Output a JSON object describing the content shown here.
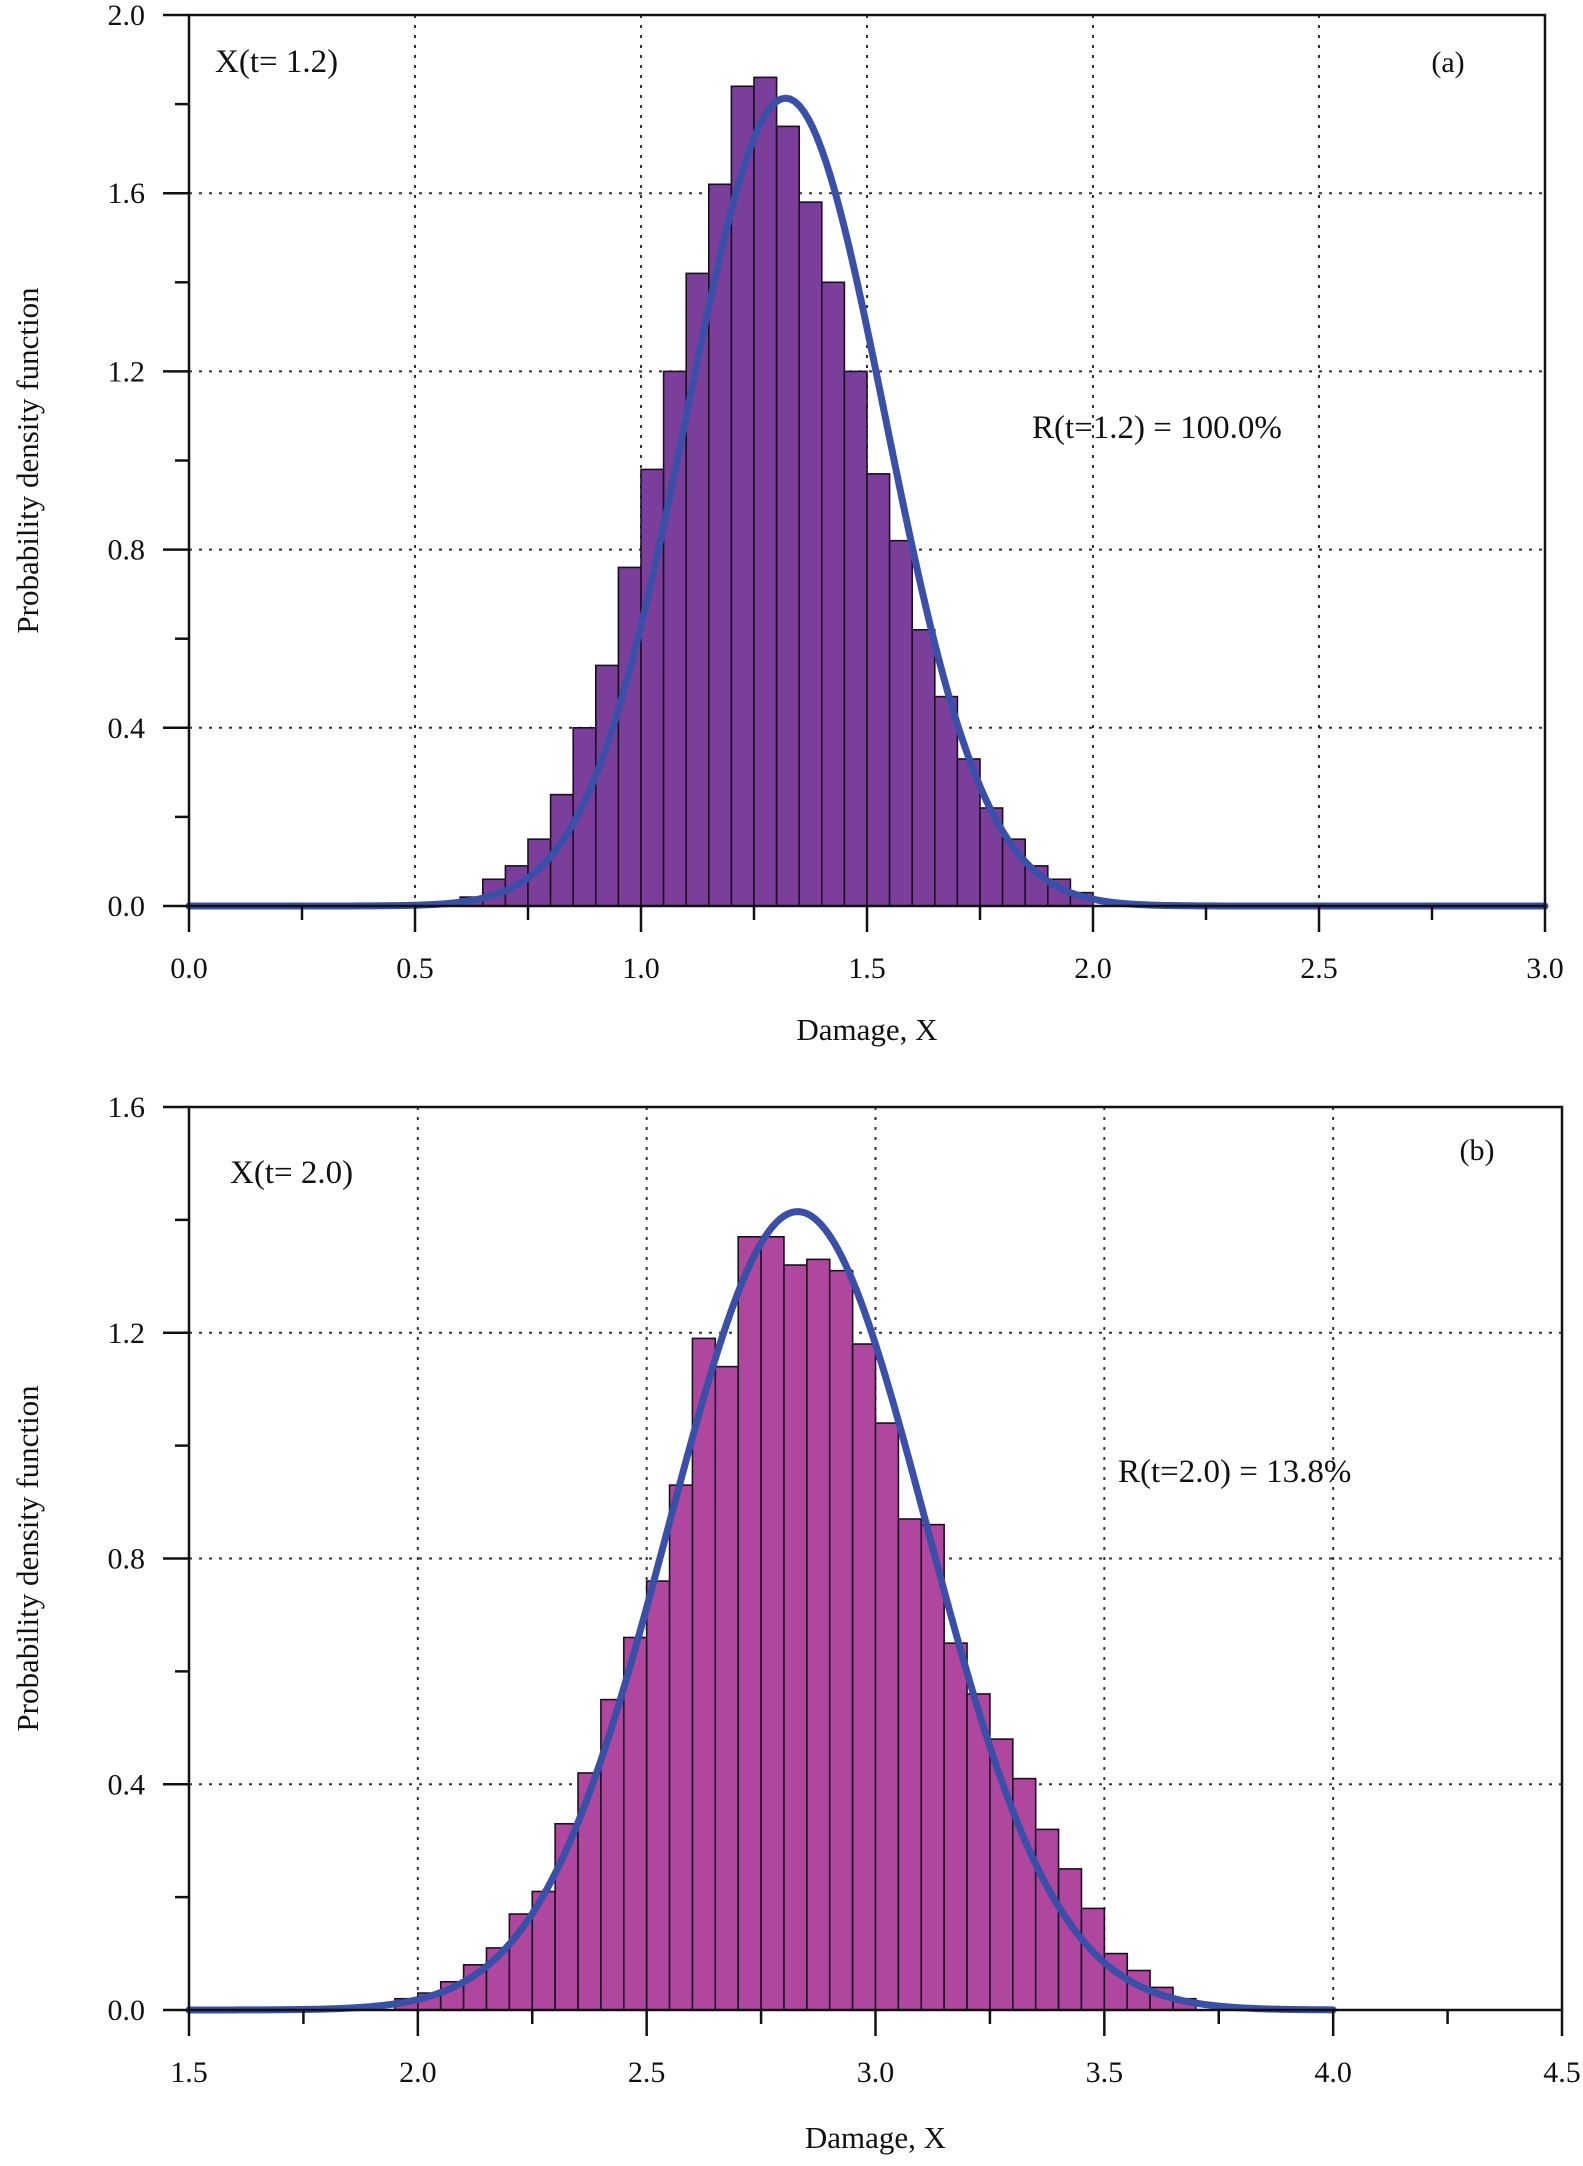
{
  "figure": {
    "colors": {
      "curve": "#3a4fa8",
      "bar_edge": "#1a1020",
      "grid": "#333333",
      "axis": "#111111"
    }
  },
  "chart_data": [
    {
      "id": "a",
      "type": "bar",
      "panel_label": "(a)",
      "annotation_left": "X(t= 1.2)",
      "annotation_right": "R(t=1.2) = 100.0%",
      "xlabel": "Damage, X",
      "ylabel": "Probability density function",
      "xlim": [
        0.0,
        3.0
      ],
      "ylim": [
        0.0,
        2.0
      ],
      "xticks": [
        0.0,
        0.5,
        1.0,
        1.5,
        2.0,
        2.5,
        3.0
      ],
      "xtick_labels": [
        "0.0",
        "0.5",
        "1.0",
        "1.5",
        "2.0",
        "2.5",
        "3.0"
      ],
      "yticks": [
        0.0,
        0.4,
        0.8,
        1.2,
        1.6,
        2.0
      ],
      "ytick_labels": [
        "0.0",
        "0.4",
        "0.8",
        "1.2",
        "1.6",
        "2.0"
      ],
      "grid": true,
      "bar_color": "#7b3f9b",
      "bin_width": 0.05,
      "bin_centers": [
        0.625,
        0.675,
        0.725,
        0.775,
        0.825,
        0.875,
        0.925,
        0.975,
        1.025,
        1.075,
        1.125,
        1.175,
        1.225,
        1.275,
        1.325,
        1.375,
        1.425,
        1.475,
        1.525,
        1.575,
        1.625,
        1.675,
        1.725,
        1.775,
        1.825,
        1.875,
        1.925,
        1.975
      ],
      "bar_values": [
        0.02,
        0.06,
        0.09,
        0.15,
        0.25,
        0.4,
        0.54,
        0.76,
        0.98,
        1.2,
        1.42,
        1.62,
        1.84,
        1.86,
        1.75,
        1.58,
        1.4,
        1.2,
        0.97,
        0.82,
        0.62,
        0.47,
        0.33,
        0.22,
        0.15,
        0.09,
        0.06,
        0.03
      ],
      "curve": {
        "model": "normal",
        "mean": 1.32,
        "std": 0.22,
        "x_range": [
          0.0,
          3.0
        ]
      }
    },
    {
      "id": "b",
      "type": "bar",
      "panel_label": "(b)",
      "annotation_left": "X(t= 2.0)",
      "annotation_right": "R(t=2.0) = 13.8%",
      "xlabel": "Damage, X",
      "ylabel": "Probability density function",
      "xlim": [
        1.5,
        4.5
      ],
      "ylim": [
        0.0,
        1.6
      ],
      "xticks": [
        1.5,
        2.0,
        2.5,
        3.0,
        3.5,
        4.0,
        4.5
      ],
      "xtick_labels": [
        "1.5",
        "2.0",
        "2.5",
        "3.0",
        "3.5",
        "4.0",
        "4.5"
      ],
      "yticks": [
        0.0,
        0.4,
        0.8,
        1.2,
        1.6
      ],
      "ytick_labels": [
        "0.0",
        "0.4",
        "0.8",
        "1.2",
        "1.6"
      ],
      "grid": true,
      "bar_color": "#b0479f",
      "bin_width": 0.05,
      "bin_centers": [
        1.975,
        2.025,
        2.075,
        2.125,
        2.175,
        2.225,
        2.275,
        2.325,
        2.375,
        2.425,
        2.475,
        2.525,
        2.575,
        2.625,
        2.675,
        2.725,
        2.775,
        2.825,
        2.875,
        2.925,
        2.975,
        3.025,
        3.075,
        3.125,
        3.175,
        3.225,
        3.275,
        3.325,
        3.375,
        3.425,
        3.475,
        3.525,
        3.575,
        3.625,
        3.675
      ],
      "bar_values": [
        0.02,
        0.03,
        0.05,
        0.08,
        0.11,
        0.17,
        0.21,
        0.33,
        0.42,
        0.55,
        0.66,
        0.76,
        0.93,
        1.19,
        1.14,
        1.37,
        1.37,
        1.32,
        1.33,
        1.31,
        1.18,
        1.04,
        0.87,
        0.86,
        0.65,
        0.56,
        0.48,
        0.41,
        0.32,
        0.25,
        0.18,
        0.1,
        0.07,
        0.04,
        0.02
      ],
      "curve": {
        "model": "normal",
        "mean": 2.83,
        "std": 0.282,
        "x_range": [
          1.5,
          4.0
        ]
      }
    }
  ]
}
